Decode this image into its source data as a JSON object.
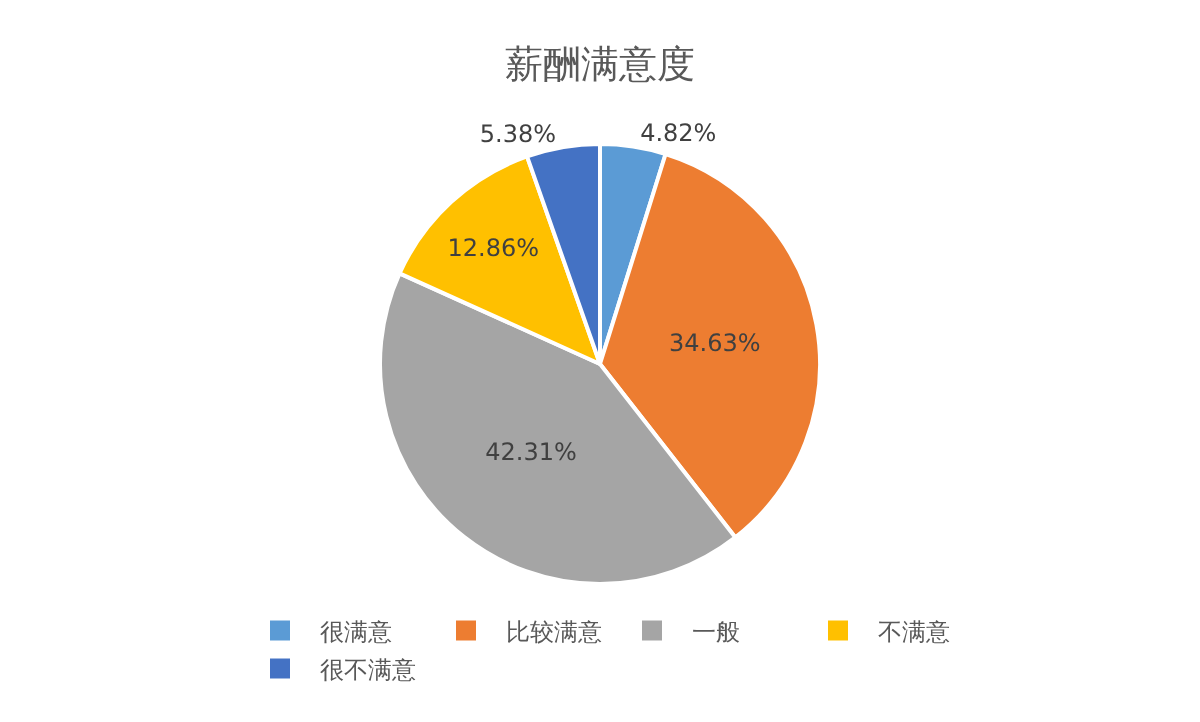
{
  "chart_data": {
    "type": "pie",
    "title": "薪酬满意度",
    "categories": [
      "很满意",
      "比较满意",
      "一般",
      "不满意",
      "很不满意"
    ],
    "values": [
      4.82,
      34.63,
      42.31,
      12.86,
      5.38
    ],
    "colors": [
      "#5b9bd5",
      "#ed7d31",
      "#a5a5a5",
      "#ffc000",
      "#4472c4"
    ],
    "value_labels": [
      "4.82%",
      "34.63%",
      "42.31%",
      "12.86%",
      "5.38%"
    ],
    "legend": "bottom"
  }
}
